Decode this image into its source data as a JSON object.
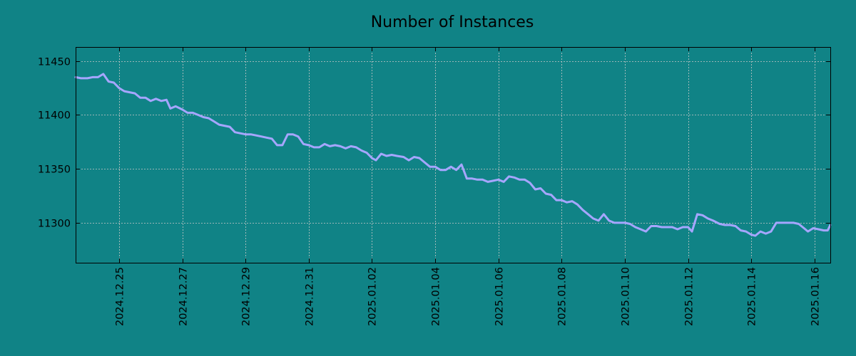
{
  "chart_data": {
    "type": "line",
    "title": "Number of Instances",
    "xlabel": "",
    "ylabel": "",
    "x_start": "2024-12-23T15:00",
    "x_end": "2025-01-16T12:00",
    "y_range": [
      11263,
      11463
    ],
    "y_ticks": [
      11300,
      11350,
      11400,
      11450
    ],
    "y_tick_labels": [
      "11300",
      "11350",
      "11400",
      "11450"
    ],
    "x_ticks": [
      "2024-12-25",
      "2024-12-27",
      "2024-12-29",
      "2024-12-31",
      "2025-01-02",
      "2025-01-04",
      "2025-01-06",
      "2025-01-08",
      "2025-01-10",
      "2025-01-12",
      "2025-01-14",
      "2025-01-16"
    ],
    "x_tick_labels": [
      "2024.12.25",
      "2024.12.27",
      "2024.12.29",
      "2024.12.31",
      "2025.01.02",
      "2025.01.04",
      "2025.01.06",
      "2025.01.08",
      "2025.01.10",
      "2025.01.12",
      "2025.01.14",
      "2025.01.16"
    ],
    "grid": true,
    "legend": false,
    "colors": {
      "background": "#108386",
      "line": "#a6a6ff",
      "axes": "#000000",
      "grid": "#c8c8c8"
    },
    "series": [
      {
        "points": [
          [
            "2024-12-23T15:00",
            11435
          ],
          [
            "2024-12-23T19:00",
            11434
          ],
          [
            "2024-12-24T00:00",
            11434
          ],
          [
            "2024-12-24T04:00",
            11435
          ],
          [
            "2024-12-24T08:00",
            11435
          ],
          [
            "2024-12-24T12:00",
            11438
          ],
          [
            "2024-12-24T16:00",
            11431
          ],
          [
            "2024-12-24T20:00",
            11430
          ],
          [
            "2024-12-25T00:00",
            11425
          ],
          [
            "2024-12-25T04:00",
            11422
          ],
          [
            "2024-12-25T08:00",
            11421
          ],
          [
            "2024-12-25T12:00",
            11420
          ],
          [
            "2024-12-25T16:00",
            11416
          ],
          [
            "2024-12-25T20:00",
            11416
          ],
          [
            "2024-12-26T00:00",
            11413
          ],
          [
            "2024-12-26T04:00",
            11415
          ],
          [
            "2024-12-26T08:00",
            11413
          ],
          [
            "2024-12-26T12:00",
            11414
          ],
          [
            "2024-12-26T15:00",
            11406
          ],
          [
            "2024-12-26T19:00",
            11408
          ],
          [
            "2024-12-27T00:00",
            11405
          ],
          [
            "2024-12-27T04:00",
            11402
          ],
          [
            "2024-12-27T08:00",
            11402
          ],
          [
            "2024-12-27T12:00",
            11400
          ],
          [
            "2024-12-27T16:00",
            11398
          ],
          [
            "2024-12-27T20:00",
            11397
          ],
          [
            "2024-12-28T00:00",
            11394
          ],
          [
            "2024-12-28T04:00",
            11391
          ],
          [
            "2024-12-28T08:00",
            11390
          ],
          [
            "2024-12-28T12:00",
            11389
          ],
          [
            "2024-12-28T16:00",
            11384
          ],
          [
            "2024-12-28T20:00",
            11383
          ],
          [
            "2024-12-29T00:00",
            11382
          ],
          [
            "2024-12-29T04:00",
            11382
          ],
          [
            "2024-12-29T08:00",
            11381
          ],
          [
            "2024-12-29T12:00",
            11380
          ],
          [
            "2024-12-29T16:00",
            11379
          ],
          [
            "2024-12-29T20:00",
            11378
          ],
          [
            "2024-12-30T00:00",
            11372
          ],
          [
            "2024-12-30T04:00",
            11372
          ],
          [
            "2024-12-30T08:00",
            11382
          ],
          [
            "2024-12-30T12:00",
            11382
          ],
          [
            "2024-12-30T16:00",
            11380
          ],
          [
            "2024-12-30T20:00",
            11373
          ],
          [
            "2024-12-31T00:00",
            11372
          ],
          [
            "2024-12-31T04:00",
            11370
          ],
          [
            "2024-12-31T08:00",
            11370
          ],
          [
            "2024-12-31T12:00",
            11373
          ],
          [
            "2024-12-31T16:00",
            11371
          ],
          [
            "2024-12-31T20:00",
            11372
          ],
          [
            "2025-01-01T00:00",
            11371
          ],
          [
            "2025-01-01T04:00",
            11369
          ],
          [
            "2025-01-01T08:00",
            11371
          ],
          [
            "2025-01-01T12:00",
            11370
          ],
          [
            "2025-01-01T16:00",
            11367
          ],
          [
            "2025-01-01T20:00",
            11365
          ],
          [
            "2025-01-02T00:00",
            11360
          ],
          [
            "2025-01-02T03:00",
            11358
          ],
          [
            "2025-01-02T07:00",
            11364
          ],
          [
            "2025-01-02T11:00",
            11362
          ],
          [
            "2025-01-02T15:00",
            11363
          ],
          [
            "2025-01-02T19:00",
            11362
          ],
          [
            "2025-01-03T00:00",
            11361
          ],
          [
            "2025-01-03T04:00",
            11358
          ],
          [
            "2025-01-03T08:00",
            11361
          ],
          [
            "2025-01-03T12:00",
            11360
          ],
          [
            "2025-01-03T16:00",
            11356
          ],
          [
            "2025-01-03T20:00",
            11352
          ],
          [
            "2025-01-04T00:00",
            11352
          ],
          [
            "2025-01-04T04:00",
            11349
          ],
          [
            "2025-01-04T08:00",
            11349
          ],
          [
            "2025-01-04T12:00",
            11352
          ],
          [
            "2025-01-04T16:00",
            11349
          ],
          [
            "2025-01-04T20:00",
            11354
          ],
          [
            "2025-01-05T00:00",
            11341
          ],
          [
            "2025-01-05T04:00",
            11341
          ],
          [
            "2025-01-05T08:00",
            11340
          ],
          [
            "2025-01-05T12:00",
            11340
          ],
          [
            "2025-01-05T16:00",
            11338
          ],
          [
            "2025-01-05T20:00",
            11339
          ],
          [
            "2025-01-06T00:00",
            11340
          ],
          [
            "2025-01-06T04:00",
            11338
          ],
          [
            "2025-01-06T08:00",
            11343
          ],
          [
            "2025-01-06T12:00",
            11342
          ],
          [
            "2025-01-06T16:00",
            11340
          ],
          [
            "2025-01-06T20:00",
            11340
          ],
          [
            "2025-01-07T00:00",
            11337
          ],
          [
            "2025-01-07T04:00",
            11331
          ],
          [
            "2025-01-07T08:00",
            11332
          ],
          [
            "2025-01-07T12:00",
            11327
          ],
          [
            "2025-01-07T16:00",
            11326
          ],
          [
            "2025-01-07T20:00",
            11321
          ],
          [
            "2025-01-08T00:00",
            11321
          ],
          [
            "2025-01-08T04:00",
            11319
          ],
          [
            "2025-01-08T08:00",
            11320
          ],
          [
            "2025-01-08T12:00",
            11317
          ],
          [
            "2025-01-08T16:00",
            11312
          ],
          [
            "2025-01-08T20:00",
            11308
          ],
          [
            "2025-01-09T00:00",
            11304
          ],
          [
            "2025-01-09T04:00",
            11302
          ],
          [
            "2025-01-09T08:00",
            11308
          ],
          [
            "2025-01-09T12:00",
            11302
          ],
          [
            "2025-01-09T16:00",
            11300
          ],
          [
            "2025-01-09T20:00",
            11300
          ],
          [
            "2025-01-10T00:00",
            11300
          ],
          [
            "2025-01-10T04:00",
            11299
          ],
          [
            "2025-01-10T08:00",
            11296
          ],
          [
            "2025-01-10T12:00",
            11294
          ],
          [
            "2025-01-10T16:00",
            11292
          ],
          [
            "2025-01-10T20:00",
            11297
          ],
          [
            "2025-01-11T00:00",
            11297
          ],
          [
            "2025-01-11T04:00",
            11296
          ],
          [
            "2025-01-11T08:00",
            11296
          ],
          [
            "2025-01-11T12:00",
            11296
          ],
          [
            "2025-01-11T16:00",
            11294
          ],
          [
            "2025-01-11T20:00",
            11296
          ],
          [
            "2025-01-12T00:00",
            11296
          ],
          [
            "2025-01-12T03:00",
            11292
          ],
          [
            "2025-01-12T07:00",
            11308
          ],
          [
            "2025-01-12T11:00",
            11307
          ],
          [
            "2025-01-12T15:00",
            11304
          ],
          [
            "2025-01-12T19:00",
            11302
          ],
          [
            "2025-01-13T00:00",
            11299
          ],
          [
            "2025-01-13T04:00",
            11298
          ],
          [
            "2025-01-13T08:00",
            11298
          ],
          [
            "2025-01-13T12:00",
            11297
          ],
          [
            "2025-01-13T16:00",
            11293
          ],
          [
            "2025-01-13T20:00",
            11292
          ],
          [
            "2025-01-14T00:00",
            11289
          ],
          [
            "2025-01-14T03:00",
            11288
          ],
          [
            "2025-01-14T07:00",
            11292
          ],
          [
            "2025-01-14T11:00",
            11290
          ],
          [
            "2025-01-14T15:00",
            11292
          ],
          [
            "2025-01-14T19:00",
            11300
          ],
          [
            "2025-01-15T00:00",
            11300
          ],
          [
            "2025-01-15T04:00",
            11300
          ],
          [
            "2025-01-15T08:00",
            11300
          ],
          [
            "2025-01-15T12:00",
            11299
          ],
          [
            "2025-01-15T16:00",
            11295
          ],
          [
            "2025-01-15T19:00",
            11292
          ],
          [
            "2025-01-15T23:00",
            11295
          ],
          [
            "2025-01-16T03:00",
            11294
          ],
          [
            "2025-01-16T07:00",
            11293
          ],
          [
            "2025-01-16T10:00",
            11293
          ],
          [
            "2025-01-16T12:00",
            11298
          ]
        ]
      }
    ]
  }
}
